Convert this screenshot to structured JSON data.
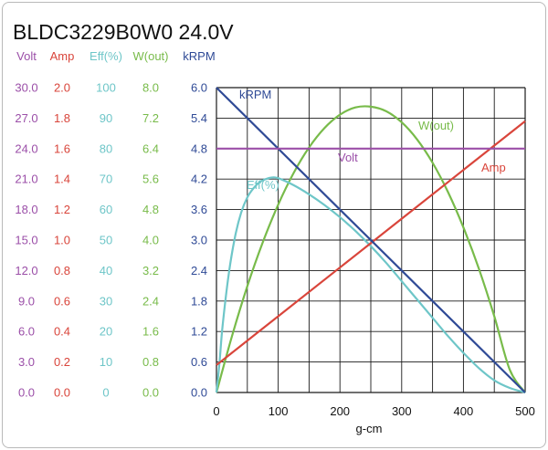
{
  "chart_data": {
    "type": "line",
    "title": "BLDC3229B0W0   24.0V",
    "xlabel": "g-cm",
    "xlim": [
      0,
      500
    ],
    "x_ticks": [
      "0",
      "100",
      "200",
      "300",
      "400",
      "500"
    ],
    "grid": true,
    "axes": [
      {
        "key": "volt",
        "header": "Volt",
        "color": "#9b4fa8",
        "ticks": [
          "30.0",
          "27.0",
          "24.0",
          "21.0",
          "18.0",
          "15.0",
          "12.0",
          "9.0",
          "6.0",
          "3.0",
          "0.0"
        ],
        "range": [
          0,
          30
        ]
      },
      {
        "key": "amp",
        "header": "Amp",
        "color": "#d9453b",
        "ticks": [
          "2.0",
          "1.8",
          "1.6",
          "1.4",
          "1.2",
          "1.0",
          "0.8",
          "0.6",
          "0.4",
          "0.2",
          "0.0"
        ],
        "range": [
          0,
          2
        ]
      },
      {
        "key": "eff",
        "header": "Eff(%)",
        "color": "#6ec6c8",
        "ticks": [
          "100",
          "90",
          "80",
          "70",
          "60",
          "50",
          "40",
          "30",
          "20",
          "10",
          "0"
        ],
        "range": [
          0,
          100
        ]
      },
      {
        "key": "wout",
        "header": "W(out)",
        "color": "#78bb4a",
        "ticks": [
          "8.0",
          "7.2",
          "6.4",
          "5.6",
          "4.8",
          "4.0",
          "3.2",
          "2.4",
          "1.6",
          "0.8",
          "0.0"
        ],
        "range": [
          0,
          8
        ]
      },
      {
        "key": "krpm",
        "header": "kRPM",
        "color": "#2f4a96",
        "ticks": [
          "6.0",
          "5.4",
          "4.8",
          "4.2",
          "3.6",
          "3.0",
          "2.4",
          "1.8",
          "1.2",
          "0.6",
          "0.0"
        ],
        "range": [
          0,
          6
        ]
      }
    ],
    "series": [
      {
        "name": "kRPM",
        "label": "kRPM",
        "axis": "krpm",
        "color": "#2f4a96",
        "x": [
          0,
          500
        ],
        "y": [
          6.0,
          0.0
        ]
      },
      {
        "name": "Volt",
        "label": "Volt",
        "axis": "volt",
        "color": "#9b4fa8",
        "x": [
          0,
          500
        ],
        "y": [
          24.0,
          24.0
        ]
      },
      {
        "name": "Amp",
        "label": "Amp",
        "axis": "amp",
        "color": "#d9453b",
        "x": [
          0,
          100,
          200,
          300,
          400,
          500
        ],
        "y": [
          0.18,
          0.5,
          0.82,
          1.14,
          1.46,
          1.78
        ]
      },
      {
        "name": "W(out)",
        "label": "W(out)",
        "axis": "wout",
        "color": "#78bb4a",
        "x": [
          0,
          25,
          50,
          75,
          100,
          125,
          150,
          175,
          200,
          225,
          250,
          275,
          300,
          325,
          350,
          375,
          400,
          425,
          450,
          475,
          500
        ],
        "y": [
          0.0,
          1.47,
          2.79,
          3.94,
          4.93,
          5.76,
          6.43,
          6.94,
          7.29,
          7.48,
          7.5,
          7.38,
          7.09,
          6.64,
          6.03,
          5.26,
          4.33,
          3.25,
          2.0,
          0.6,
          0.0
        ]
      },
      {
        "name": "Eff(%)",
        "label": "Eff(%)",
        "axis": "eff",
        "color": "#6ec6c8",
        "x": [
          0,
          5,
          10,
          20,
          30,
          40,
          50,
          60,
          70,
          80,
          90,
          100,
          125,
          150,
          175,
          200,
          225,
          250,
          275,
          300,
          325,
          350,
          375,
          400,
          425,
          450,
          475,
          500
        ],
        "y": [
          0,
          10,
          22,
          39,
          51,
          59,
          64,
          67,
          69,
          70,
          70.5,
          70.3,
          68,
          65,
          61.5,
          57.5,
          53,
          48,
          42.5,
          36.5,
          30.5,
          24.5,
          18.5,
          13,
          8,
          4,
          1.5,
          0
        ]
      }
    ],
    "annotations": [
      {
        "text": "kRPM",
        "series": "kRPM"
      },
      {
        "text": "Volt",
        "series": "Volt"
      },
      {
        "text": "Amp",
        "series": "Amp"
      },
      {
        "text": "W(out)",
        "series": "W(out)"
      },
      {
        "text": "Eff(%)",
        "series": "Eff(%)"
      }
    ]
  }
}
